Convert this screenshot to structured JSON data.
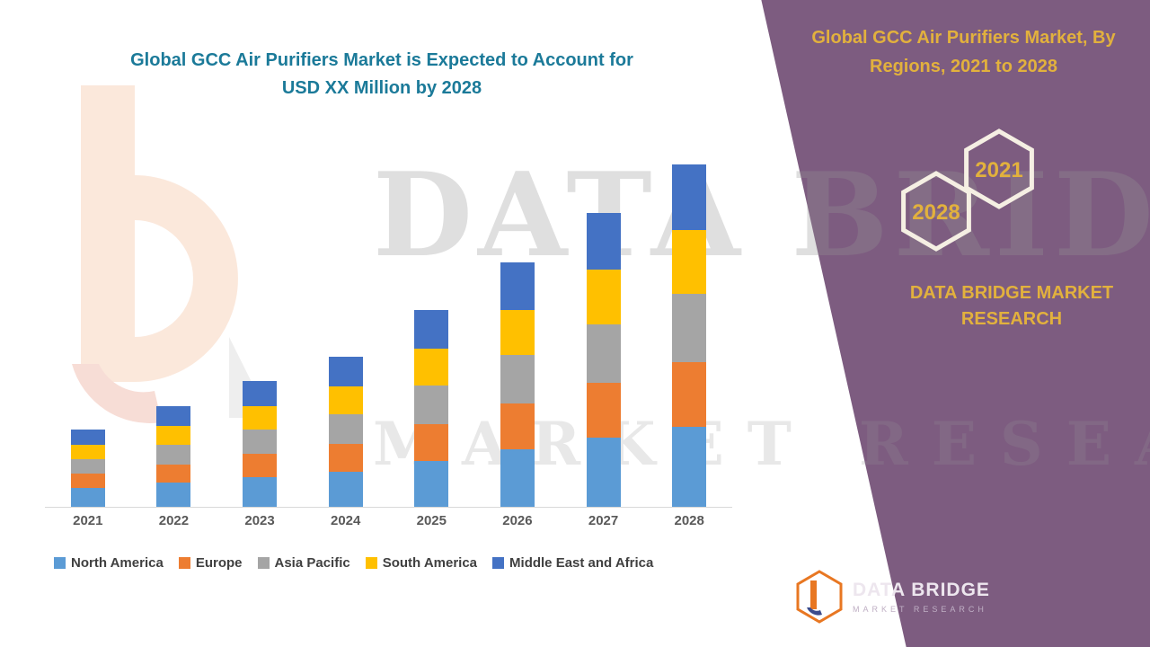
{
  "title": {
    "line1": "Global GCC Air Purifiers Market is Expected to Account for",
    "line2": "USD XX Million by 2028"
  },
  "panel": {
    "title": "Global GCC Air Purifiers Market, By Regions, 2021 to 2028",
    "badge_front": "2028",
    "badge_back": "2021",
    "brand": "DATA BRIDGE MARKET RESEARCH",
    "bg_color": "#7D5C80",
    "accent_color": "#E2B13D"
  },
  "watermark": {
    "line1": "DATA BRIDGE",
    "line2": "MARKET RESEARCH"
  },
  "footer_logo": {
    "name": "DATA BRIDGE",
    "sub": "MARKET RESEARCH"
  },
  "chart_data": {
    "type": "bar",
    "stacked": true,
    "title": "Global GCC Air Purifiers Market is Expected to Account for USD XX Million by 2028",
    "xlabel": "",
    "ylabel": "",
    "ylim": [
      0,
      400
    ],
    "grid": false,
    "legend_position": "bottom",
    "categories": [
      "2021",
      "2022",
      "2023",
      "2024",
      "2025",
      "2026",
      "2027",
      "2028"
    ],
    "series": [
      {
        "name": "North America",
        "color": "#5B9BD5",
        "values": [
          22,
          28,
          34,
          40,
          52,
          65,
          78,
          90
        ]
      },
      {
        "name": "Europe",
        "color": "#ED7D31",
        "values": [
          16,
          20,
          26,
          31,
          41,
          51,
          61,
          72
        ]
      },
      {
        "name": "Asia Pacific",
        "color": "#A5A5A5",
        "values": [
          16,
          22,
          27,
          33,
          43,
          54,
          65,
          76
        ]
      },
      {
        "name": "South America",
        "color": "#FFC000",
        "values": [
          16,
          21,
          26,
          31,
          41,
          50,
          61,
          71
        ]
      },
      {
        "name": "Middle East and Africa",
        "color": "#4472C4",
        "values": [
          17,
          22,
          28,
          33,
          43,
          53,
          63,
          73
        ]
      }
    ]
  }
}
